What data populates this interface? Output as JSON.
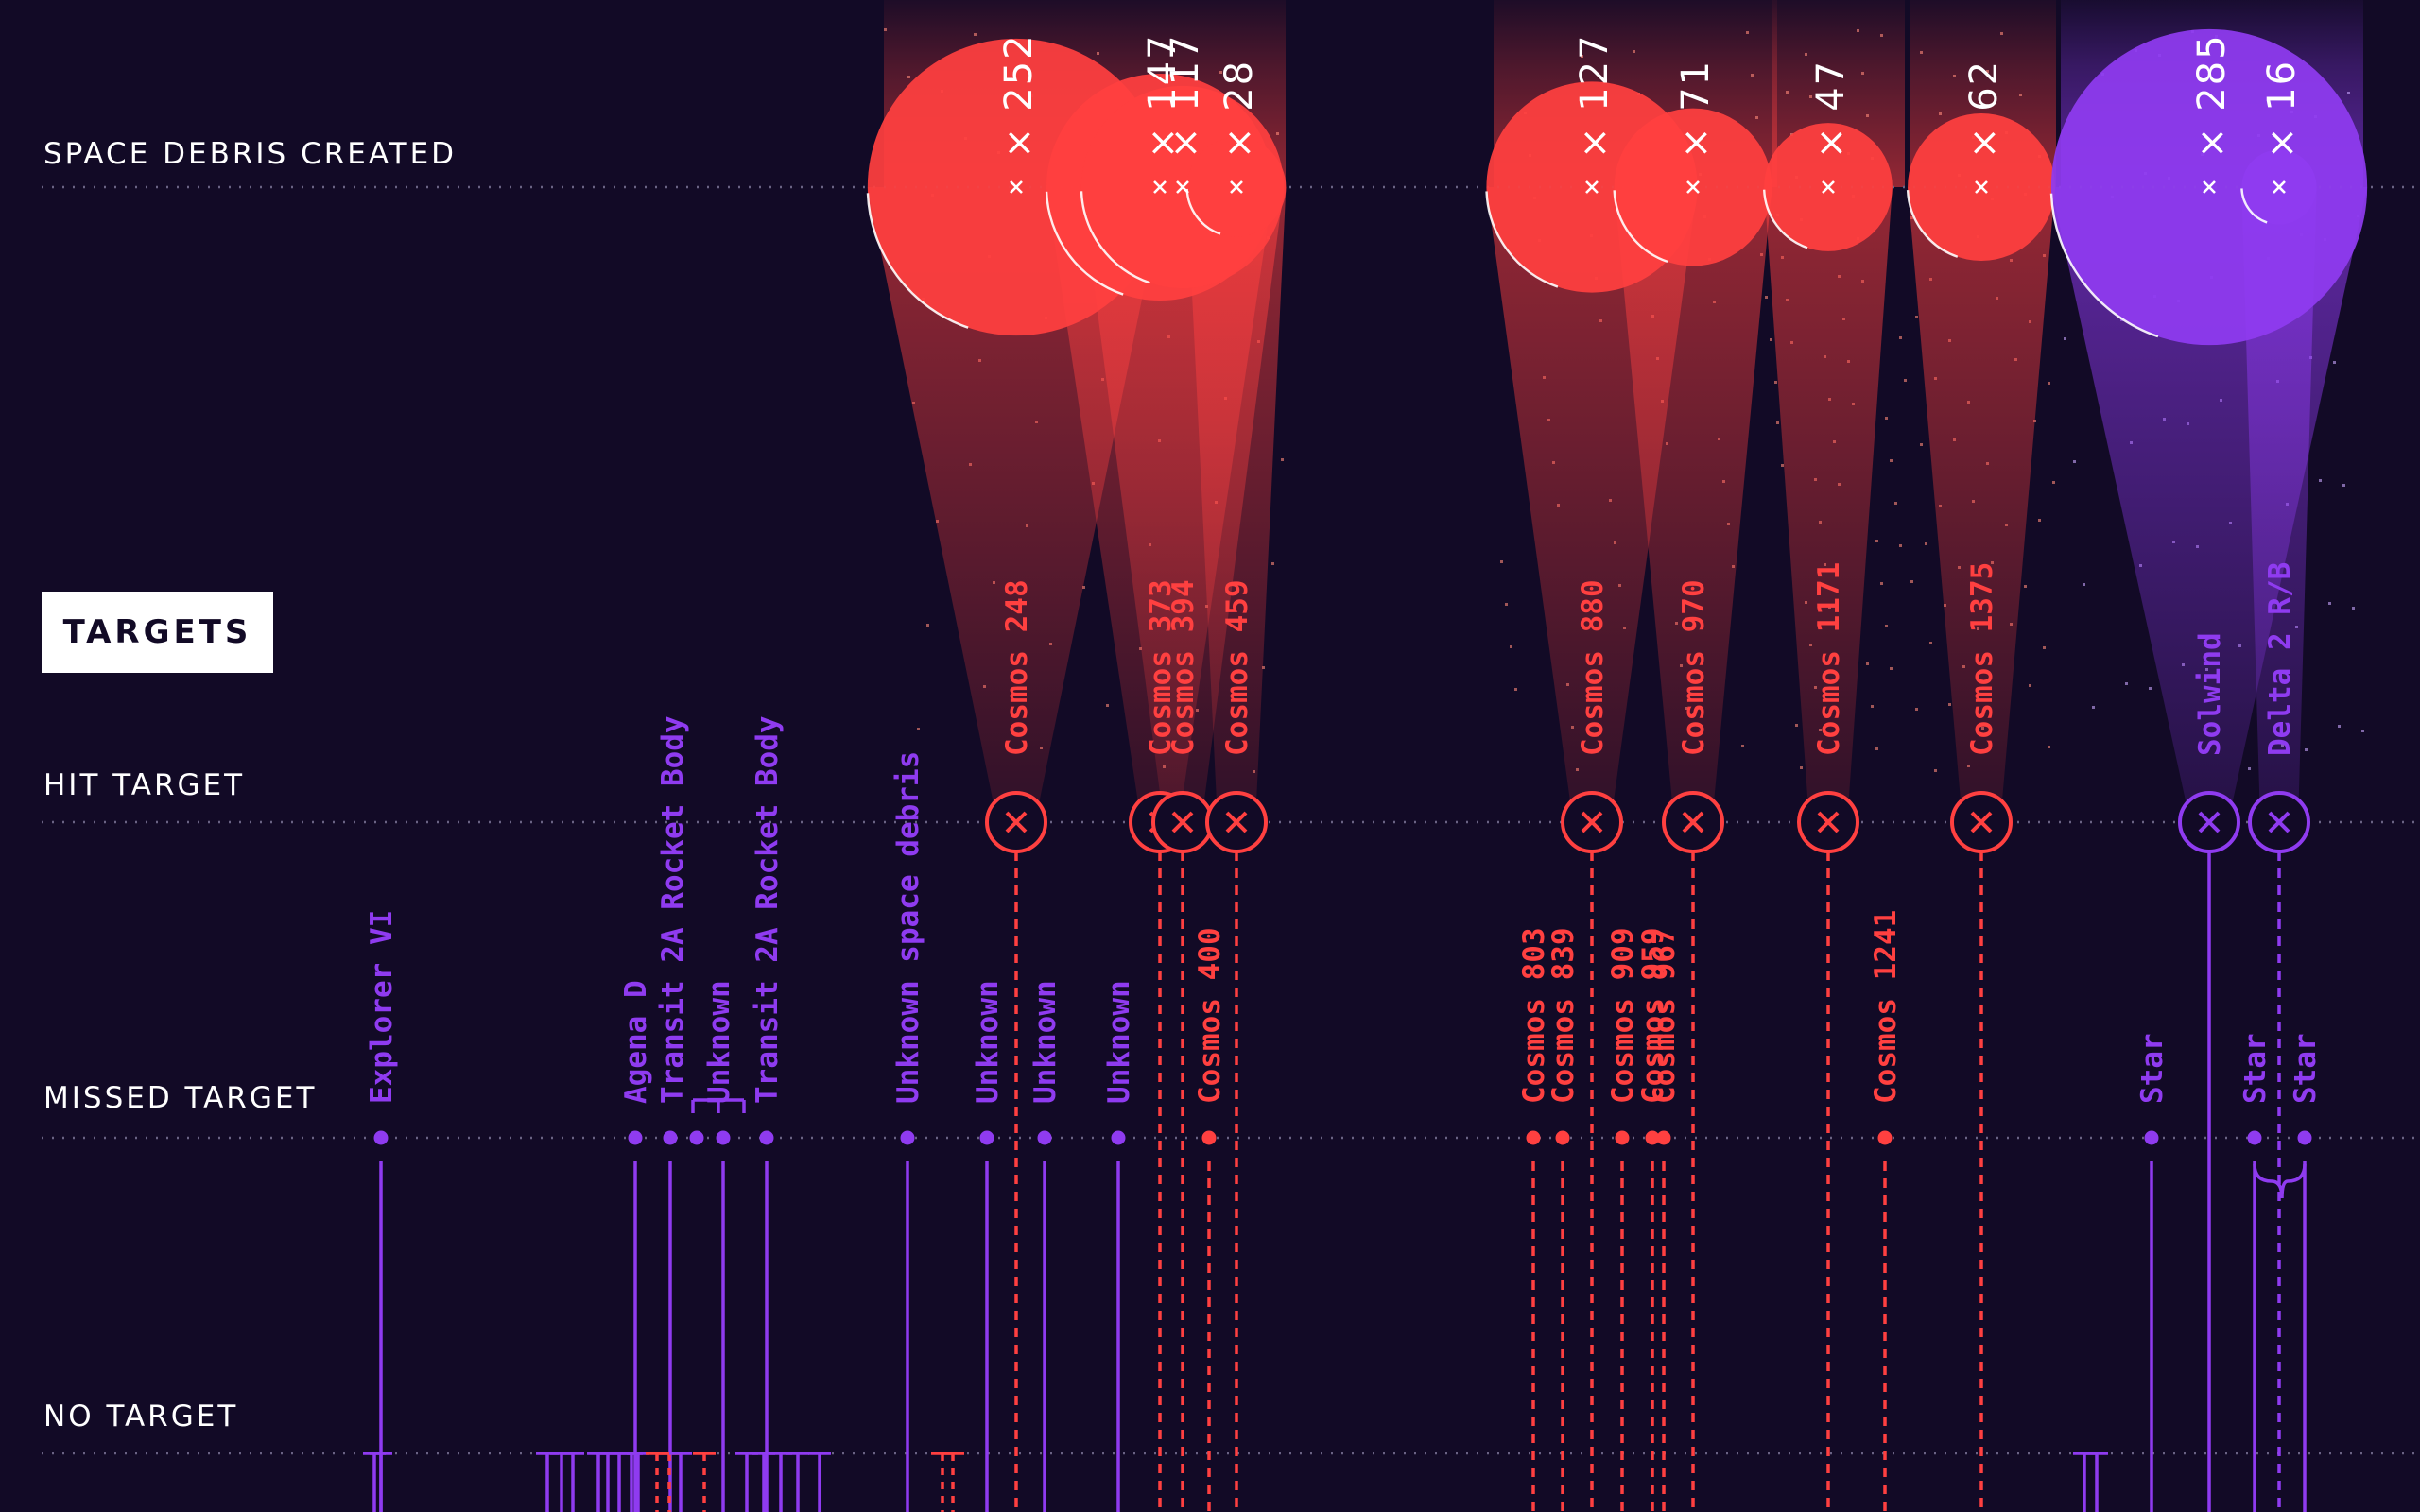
{
  "chart_data": {
    "type": "scatter",
    "rows": {
      "debris": "SPACE DEBRIS CREATED",
      "hit": "HIT TARGET",
      "missed": "MISSED TARGET",
      "none": "NO TARGET"
    },
    "legend_box": "TARGETS",
    "colors": {
      "soviet": "#ff4040",
      "us": "#8f3bf0",
      "bg": "#120a26"
    },
    "hit_targets": [
      {
        "name": "Cosmos 248",
        "debris": 252,
        "side": "soviet"
      },
      {
        "name": "Cosmos 373",
        "debris": 147,
        "side": "soviet"
      },
      {
        "name": "Cosmos 394",
        "debris": 117,
        "side": "soviet"
      },
      {
        "name": "Cosmos 459",
        "debris": 28,
        "side": "soviet"
      },
      {
        "name": "Cosmos 880",
        "debris": 127,
        "side": "soviet"
      },
      {
        "name": "Cosmos 970",
        "debris": 71,
        "side": "soviet"
      },
      {
        "name": "Cosmos 1171",
        "debris": 47,
        "side": "soviet"
      },
      {
        "name": "Cosmos 1375",
        "debris": 62,
        "side": "soviet"
      },
      {
        "name": "Solwind",
        "debris": 285,
        "side": "us"
      },
      {
        "name": "Delta 2 R/B",
        "debris": 16,
        "side": "us"
      }
    ],
    "missed_targets": [
      {
        "name": "Explorer VI",
        "side": "us"
      },
      {
        "name": "Agena D",
        "side": "us"
      },
      {
        "name": "Transit 2A Rocket Body",
        "side": "us"
      },
      {
        "name": "Unknown",
        "side": "us"
      },
      {
        "name": "Transit 2A Rocket Body",
        "side": "us"
      },
      {
        "name": "Unknown space debris",
        "side": "us"
      },
      {
        "name": "Unknown",
        "side": "us"
      },
      {
        "name": "Unknown",
        "side": "us"
      },
      {
        "name": "Unknown",
        "side": "us"
      },
      {
        "name": "Cosmos 400",
        "side": "soviet"
      },
      {
        "name": "Cosmos 803",
        "side": "soviet"
      },
      {
        "name": "Cosmos 839",
        "side": "soviet"
      },
      {
        "name": "Cosmos 909",
        "side": "soviet"
      },
      {
        "name": "Cosmos 959",
        "side": "soviet"
      },
      {
        "name": "Cosmos 967",
        "side": "soviet"
      },
      {
        "name": "Cosmos 1241",
        "side": "soviet"
      },
      {
        "name": "Star",
        "side": "us"
      },
      {
        "name": "Star",
        "side": "us"
      },
      {
        "name": "Star",
        "side": "us"
      }
    ],
    "grid": true
  }
}
